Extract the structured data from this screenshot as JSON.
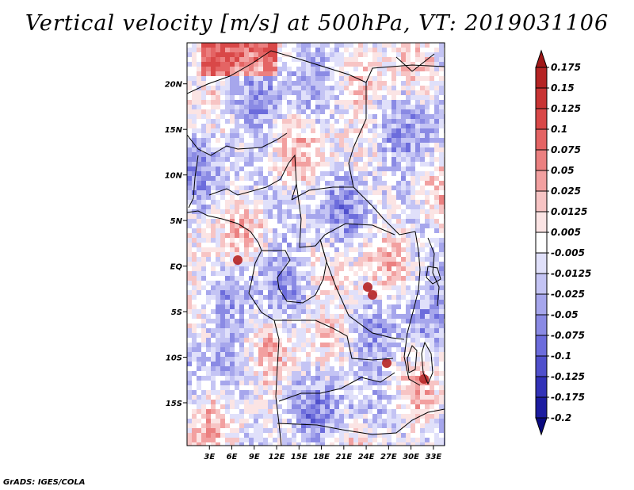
{
  "title": "Vertical velocity [m/s] at 500hPa, VT: 2019031106",
  "footer": "GrADS: IGES/COLA",
  "map": {
    "variable": "Vertical velocity",
    "units": "m/s",
    "level": "500hPa",
    "valid_time": "2019031106",
    "lat_labels": [
      "20N",
      "15N",
      "10N",
      "5N",
      "EQ",
      "5S",
      "10S",
      "15S"
    ],
    "lon_labels": [
      "3E",
      "6E",
      "9E",
      "12E",
      "15E",
      "18E",
      "21E",
      "24E",
      "27E",
      "30E",
      "33E"
    ],
    "lat_values": [
      20,
      15,
      10,
      5,
      0,
      -5,
      -10,
      -15
    ],
    "lon_values": [
      3,
      6,
      9,
      12,
      15,
      18,
      21,
      24,
      27,
      30,
      33
    ],
    "lat_range": [
      -19.7,
      24.5
    ],
    "lon_range": [
      0,
      34.5
    ]
  },
  "colorbar": {
    "labels": [
      "0.175",
      "0.15",
      "0.125",
      "0.1",
      "0.075",
      "0.05",
      "0.025",
      "0.0125",
      "0.005",
      "-0.005",
      "-0.0125",
      "-0.025",
      "-0.05",
      "-0.075",
      "-0.1",
      "-0.125",
      "-0.175",
      "-0.2"
    ],
    "colors": [
      "#a01818",
      "#b52424",
      "#c83434",
      "#d94848",
      "#e46464",
      "#eb8080",
      "#f2a0a0",
      "#f7c4c4",
      "#fbe4e4",
      "#ffffff",
      "#e0e0fa",
      "#c4c4f4",
      "#a6a6ec",
      "#8a8ae4",
      "#6c6cdc",
      "#5050cc",
      "#3232b8",
      "#1c1ca0",
      "#0a0a80"
    ]
  }
}
